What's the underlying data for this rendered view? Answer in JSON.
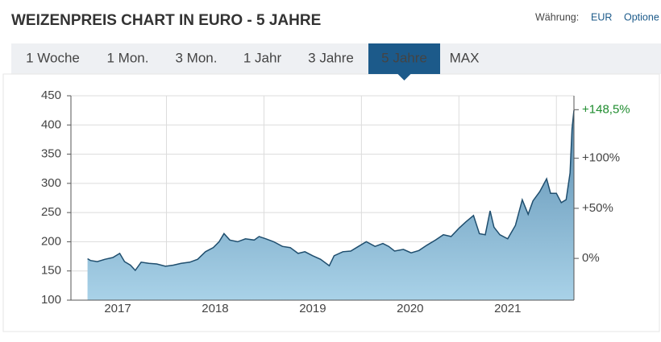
{
  "header": {
    "title": "WEIZENPREIS CHART IN EURO - 5 JAHRE",
    "currency_label": "Währung:",
    "currency": "EUR",
    "options": "Optione"
  },
  "tabs": [
    "1 Woche",
    "1 Mon.",
    "3 Mon.",
    "1 Jahr",
    "3 Jahre",
    "5 Jahre",
    "MAX"
  ],
  "active_tab": 5,
  "chart_data": {
    "type": "area",
    "x": [
      2016.69,
      2016.72,
      2016.79,
      2016.87,
      2016.95,
      2017.02,
      2017.07,
      2017.13,
      2017.18,
      2017.24,
      2017.32,
      2017.4,
      2017.49,
      2017.57,
      2017.65,
      2017.74,
      2017.82,
      2017.9,
      2017.98,
      2018.04,
      2018.09,
      2018.15,
      2018.23,
      2018.31,
      2018.4,
      2018.45,
      2018.52,
      2018.6,
      2018.69,
      2018.77,
      2018.85,
      2018.92,
      2019.0,
      2019.08,
      2019.17,
      2019.22,
      2019.31,
      2019.39,
      2019.47,
      2019.55,
      2019.64,
      2019.72,
      2019.78,
      2019.84,
      2019.93,
      2020.01,
      2020.09,
      2020.17,
      2020.26,
      2020.34,
      2020.42,
      2020.5,
      2020.57,
      2020.65,
      2020.71,
      2020.77,
      2020.82,
      2020.86,
      2020.92,
      2021.0,
      2021.08,
      2021.15,
      2021.21,
      2021.26,
      2021.33,
      2021.4,
      2021.44,
      2021.5,
      2021.55,
      2021.6,
      2021.64,
      2021.66,
      2021.68
    ],
    "values": [
      171,
      168,
      166,
      170,
      173,
      180,
      166,
      160,
      151,
      165,
      163,
      162,
      158,
      160,
      163,
      165,
      170,
      183,
      190,
      200,
      214,
      203,
      200,
      205,
      203,
      209,
      205,
      200,
      192,
      190,
      180,
      183,
      176,
      170,
      159,
      176,
      183,
      184,
      192,
      200,
      192,
      197,
      192,
      184,
      187,
      181,
      185,
      194,
      203,
      212,
      209,
      223,
      234,
      245,
      214,
      212,
      253,
      225,
      212,
      205,
      228,
      272,
      247,
      270,
      286,
      308,
      283,
      283,
      267,
      272,
      318,
      393,
      425
    ],
    "color": "#1f4e6e",
    "fill_top": "#5a8db0",
    "fill_bottom": "#a9d2e8",
    "xlim": [
      2016.52,
      2021.68
    ],
    "xticks": [
      2017,
      2018,
      2019,
      2020,
      2021
    ],
    "ylim": [
      100,
      450
    ],
    "yticks": [
      100,
      150,
      200,
      250,
      300,
      350,
      400,
      450
    ],
    "y2lim": [
      -41.7,
      162.4
    ],
    "y2ticks": [
      {
        "value": 0,
        "label": "0%"
      },
      {
        "value": 50,
        "label": "+50%"
      },
      {
        "value": 100,
        "label": "+100%"
      }
    ],
    "last_change": {
      "value": 148.5,
      "label": "+148,5%",
      "color": "#1e8c2e"
    },
    "grid": true
  }
}
